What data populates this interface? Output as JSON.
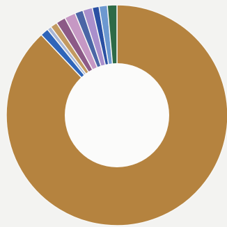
{
  "chart_data": {
    "type": "pie",
    "donut": true,
    "categories": [
      "",
      "",
      "",
      "",
      "",
      "",
      "",
      "",
      "",
      "",
      ""
    ],
    "values": [
      88.0,
      1.2,
      0.6,
      1.0,
      1.4,
      1.6,
      1.2,
      1.4,
      1.0,
      1.2,
      1.4
    ],
    "colors": [
      "#b5833f",
      "#2f65b9",
      "#a8b6d6",
      "#c39a61",
      "#8c5a87",
      "#c698c4",
      "#4b66a6",
      "#a98fcc",
      "#2a50a3",
      "#6c98d0",
      "#2d6a47"
    ],
    "title": "",
    "legend": "none"
  }
}
